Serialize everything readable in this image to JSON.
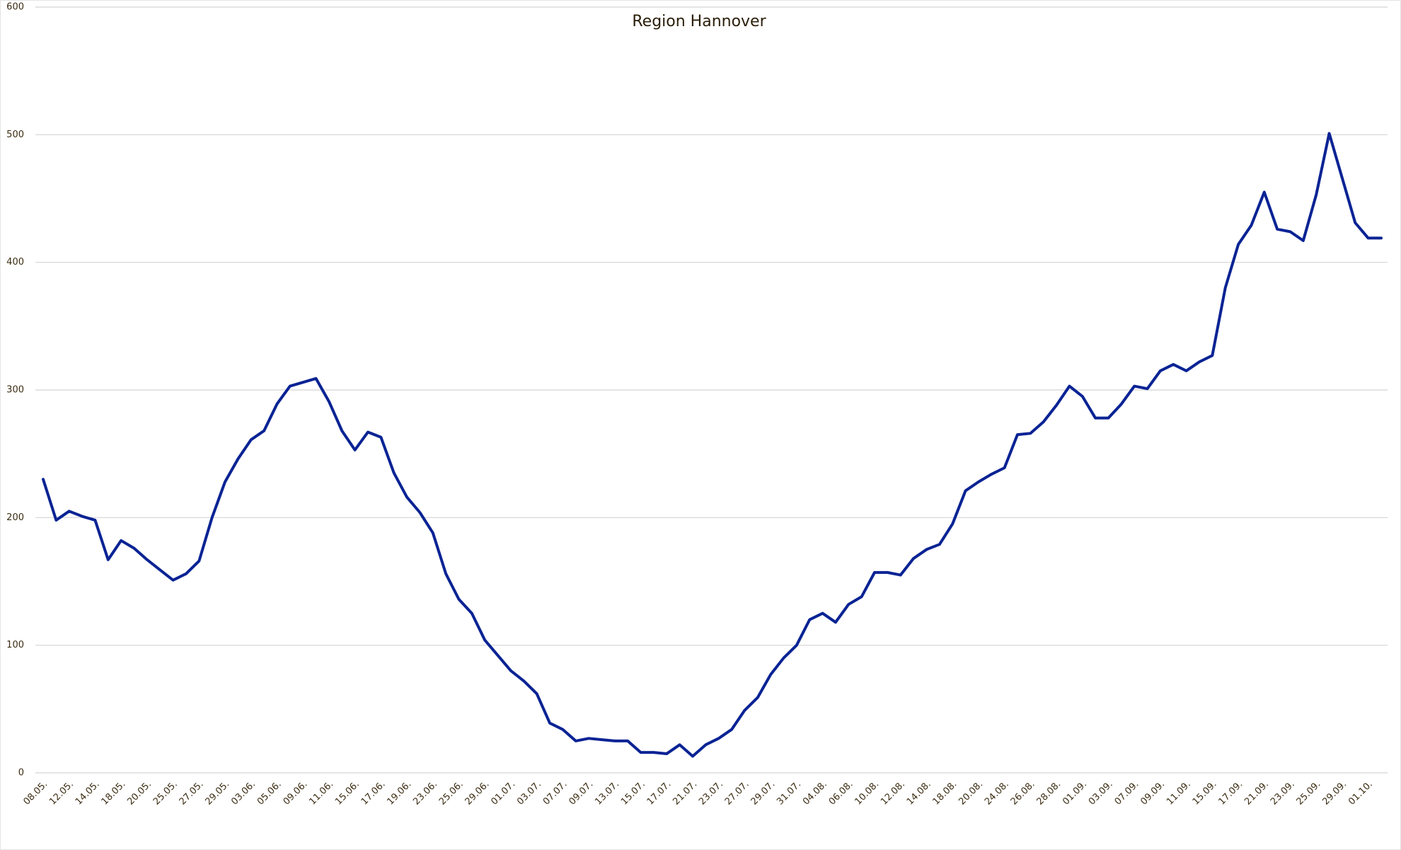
{
  "chart_data": {
    "type": "line",
    "title": "Region Hannover",
    "categories": [
      "08.05.",
      null,
      "12.05.",
      null,
      "14.05.",
      null,
      "18.05.",
      null,
      "20.05.",
      null,
      "25.05.",
      null,
      "27.05.",
      null,
      "29.05.",
      null,
      "03.06.",
      null,
      "05.06.",
      null,
      "09.06.",
      null,
      "11.06.",
      null,
      "15.06.",
      null,
      "17.06.",
      null,
      "19.06.",
      null,
      "23.06.",
      null,
      "25.06.",
      null,
      "29.06.",
      null,
      "01.07.",
      null,
      "03.07.",
      null,
      "07.07.",
      null,
      "09.07.",
      null,
      "13.07.",
      null,
      "15.07.",
      null,
      "17.07.",
      null,
      "21.07.",
      null,
      "23.07.",
      null,
      "27.07.",
      null,
      "29.07.",
      null,
      "31.07.",
      null,
      "04.08.",
      null,
      "06.08.",
      null,
      "10.08.",
      null,
      "12.08.",
      null,
      "14.08.",
      null,
      "18.08.",
      null,
      "20.08.",
      null,
      "24.08.",
      null,
      "26.08.",
      null,
      "28.08.",
      null,
      "01.09.",
      null,
      "03.09.",
      null,
      "07.09.",
      null,
      "09.09.",
      null,
      "11.09.",
      null,
      "15.09.",
      null,
      "17.09.",
      null,
      "21.09.",
      null,
      "23.09.",
      null,
      "25.09.",
      null,
      "29.09.",
      null,
      "01.10.",
      null
    ],
    "values": [
      230,
      198,
      205,
      201,
      198,
      167,
      182,
      176,
      167,
      159,
      151,
      156,
      166,
      200,
      228,
      246,
      261,
      268,
      289,
      303,
      306,
      309,
      291,
      268,
      253,
      267,
      263,
      235,
      216,
      204,
      188,
      156,
      136,
      125,
      104,
      92,
      80,
      72,
      62,
      39,
      34,
      25,
      27,
      26,
      25,
      25,
      16,
      16,
      15,
      22,
      13,
      22,
      27,
      34,
      49,
      59,
      77,
      90,
      100,
      120,
      125,
      118,
      132,
      138,
      157,
      157,
      155,
      168,
      175,
      179,
      195,
      221,
      228,
      234,
      239,
      265,
      266,
      275,
      288,
      303,
      295,
      278,
      278,
      289,
      303,
      301,
      315,
      320,
      315,
      322,
      327,
      380,
      414,
      429,
      455,
      426,
      424,
      417,
      453,
      501,
      466,
      431,
      419,
      419
    ],
    "color": "#0a2394",
    "ylim": [
      0,
      600
    ],
    "yticks": [
      0,
      100,
      200,
      300,
      400,
      500,
      600
    ],
    "grid": true
  }
}
